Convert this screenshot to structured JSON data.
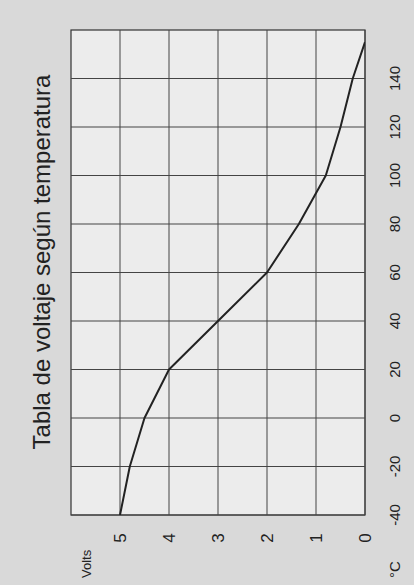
{
  "chart_data": {
    "type": "line",
    "title": "Tabla de voltaje según temperatura",
    "x_label": "°C",
    "y_label": "Volts",
    "x": [
      -40,
      -20,
      0,
      20,
      40,
      60,
      80,
      100,
      120,
      140,
      155
    ],
    "values": [
      5.0,
      4.8,
      4.5,
      4.0,
      3.0,
      2.0,
      1.35,
      0.8,
      0.5,
      0.25,
      0
    ],
    "color": "#222222",
    "xlim": [
      -40,
      160
    ],
    "xticks": [
      -40,
      -20,
      0,
      20,
      40,
      60,
      80,
      100,
      120,
      140
    ],
    "ylim": [
      0,
      6
    ],
    "yticks": [
      0,
      1,
      2,
      3,
      4,
      5
    ],
    "grid": true
  }
}
